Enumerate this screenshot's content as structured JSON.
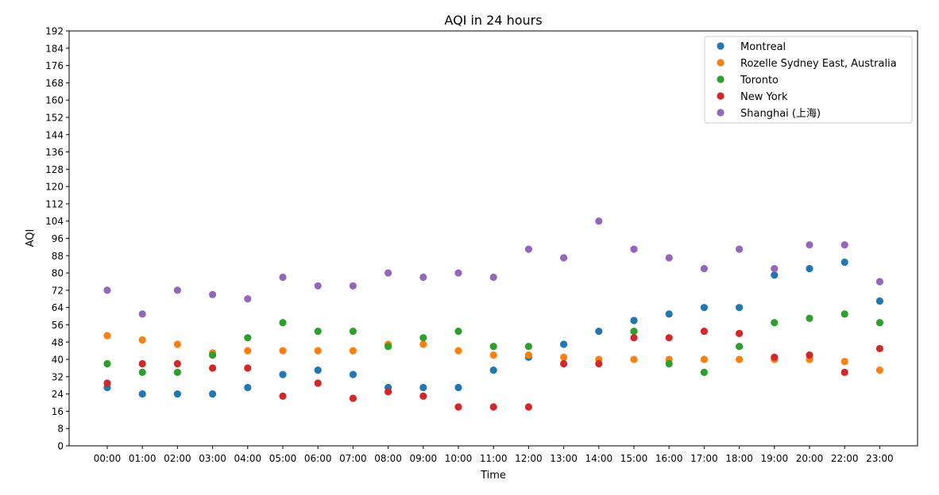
{
  "chart_data": {
    "type": "scatter",
    "title": "AQI in 24 hours",
    "xlabel": "Time",
    "ylabel": "AQI",
    "categories": [
      "00:00",
      "01:00",
      "02:00",
      "03:00",
      "04:00",
      "05:00",
      "06:00",
      "07:00",
      "08:00",
      "09:00",
      "10:00",
      "11:00",
      "12:00",
      "13:00",
      "14:00",
      "15:00",
      "16:00",
      "17:00",
      "18:00",
      "19:00",
      "20:00",
      "22:00",
      "23:00"
    ],
    "ylim": [
      0,
      192
    ],
    "yticks": [
      0,
      8,
      16,
      24,
      32,
      40,
      48,
      56,
      64,
      72,
      80,
      88,
      96,
      104,
      112,
      120,
      128,
      136,
      144,
      152,
      160,
      168,
      176,
      184,
      192
    ],
    "grid": false,
    "legend_position": "top-right",
    "series": [
      {
        "name": "Montreal",
        "color": "#1f77b4",
        "values": [
          27,
          24,
          24,
          24,
          27,
          33,
          35,
          33,
          27,
          27,
          27,
          35,
          41,
          47,
          53,
          58,
          61,
          64,
          64,
          79,
          82,
          85,
          67
        ]
      },
      {
        "name": "Rozelle Sydney East, Australia",
        "color": "#ff7f0e",
        "values": [
          51,
          49,
          47,
          43,
          44,
          44,
          44,
          44,
          47,
          47,
          44,
          42,
          42,
          41,
          40,
          40,
          40,
          40,
          40,
          40,
          40,
          39,
          35
        ]
      },
      {
        "name": "Toronto",
        "color": "#2ca02c",
        "values": [
          38,
          34,
          34,
          42,
          50,
          57,
          53,
          53,
          46,
          50,
          53,
          46,
          46,
          null,
          null,
          53,
          38,
          34,
          46,
          57,
          59,
          61,
          57
        ]
      },
      {
        "name": "New York",
        "color": "#d62728",
        "values": [
          29,
          38,
          38,
          36,
          36,
          23,
          29,
          22,
          25,
          23,
          18,
          18,
          18,
          38,
          38,
          50,
          50,
          53,
          52,
          41,
          42,
          34,
          45
        ]
      },
      {
        "name": "Shanghai (上海)",
        "color": "#9467bd",
        "values": [
          72,
          61,
          72,
          70,
          68,
          78,
          74,
          74,
          80,
          78,
          80,
          78,
          91,
          87,
          104,
          91,
          87,
          82,
          91,
          82,
          93,
          93,
          76
        ]
      }
    ]
  }
}
